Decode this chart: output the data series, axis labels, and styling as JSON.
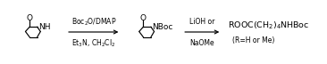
{
  "bg_color": "#ffffff",
  "fig_width": 3.66,
  "fig_height": 0.72,
  "dpi": 100,
  "arrow1_label_top": "Boc$_2$O/DMAP",
  "arrow1_label_bot": "Et$_3$N, CH$_2$Cl$_2$",
  "arrow2_label_top": "LiOH or",
  "arrow2_label_bot": "NaOMe",
  "product_line1": "ROOC(CH$_2$)$_4$NHBoc",
  "product_line2": "(R=H or Me)",
  "font_size_arrow": 5.5,
  "font_size_product": 6.8,
  "font_size_struct": 6.5,
  "line_color": "#000000",
  "line_width": 0.85
}
